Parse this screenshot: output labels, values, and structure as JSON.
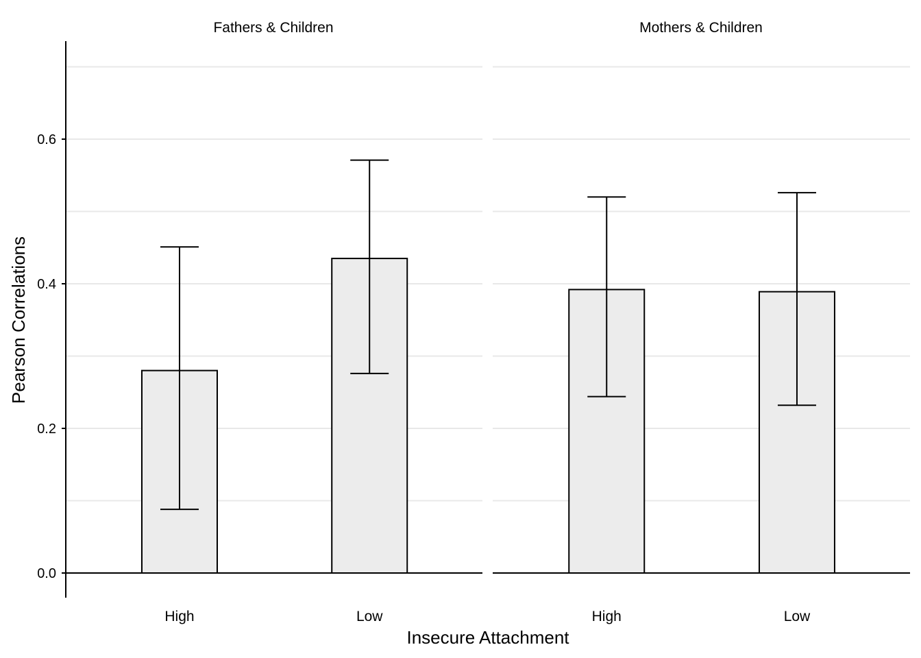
{
  "chart_data": {
    "type": "bar",
    "xlabel": "Insecure Attachment",
    "ylabel": "Pearson Correlations",
    "ylim": [
      -0.034,
      0.72
    ],
    "yticks": [
      0.0,
      0.2,
      0.4,
      0.6
    ],
    "ytick_labels": [
      "0.0",
      "0.2",
      "0.4",
      "0.6"
    ],
    "grid": true,
    "categories": [
      "High",
      "Low"
    ],
    "panels": [
      {
        "title": "Fathers & Children",
        "values": [
          0.28,
          0.435
        ],
        "error_low": [
          0.088,
          0.276
        ],
        "error_high": [
          0.451,
          0.571
        ]
      },
      {
        "title": "Mothers & Children",
        "values": [
          0.392,
          0.389
        ],
        "error_low": [
          0.244,
          0.232
        ],
        "error_high": [
          0.52,
          0.526
        ]
      }
    ]
  }
}
